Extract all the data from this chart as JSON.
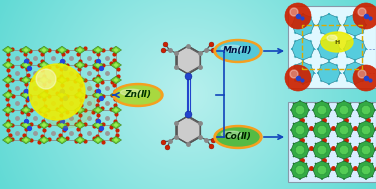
{
  "bg_color_lt": "#7ee8e4",
  "bg_color_rb": "#c8f5f2",
  "zn_label": "Zn(Ⅱ)",
  "co_label": "Co(Ⅱ)",
  "mn_label": "Mn(Ⅱ)",
  "zn_fill": "#a8d840",
  "zn_border": "#f5a020",
  "co_fill": "#55bb44",
  "co_border": "#f5a020",
  "mn_fill": "#55c8d8",
  "mn_border": "#f5a020",
  "arrow_color": "#1144bb",
  "line_color": "#1144bb",
  "figsize": [
    3.76,
    1.89
  ],
  "dpi": 100,
  "green_node": "#66cc33",
  "green_node_edge": "#336600",
  "gray_atom": "#aaaaaa",
  "red_atom": "#cc2200",
  "blue_atom": "#2244cc",
  "yellow_sphere": "#eeee00",
  "co_green": "#228833",
  "mn_cyan": "#44bbcc"
}
